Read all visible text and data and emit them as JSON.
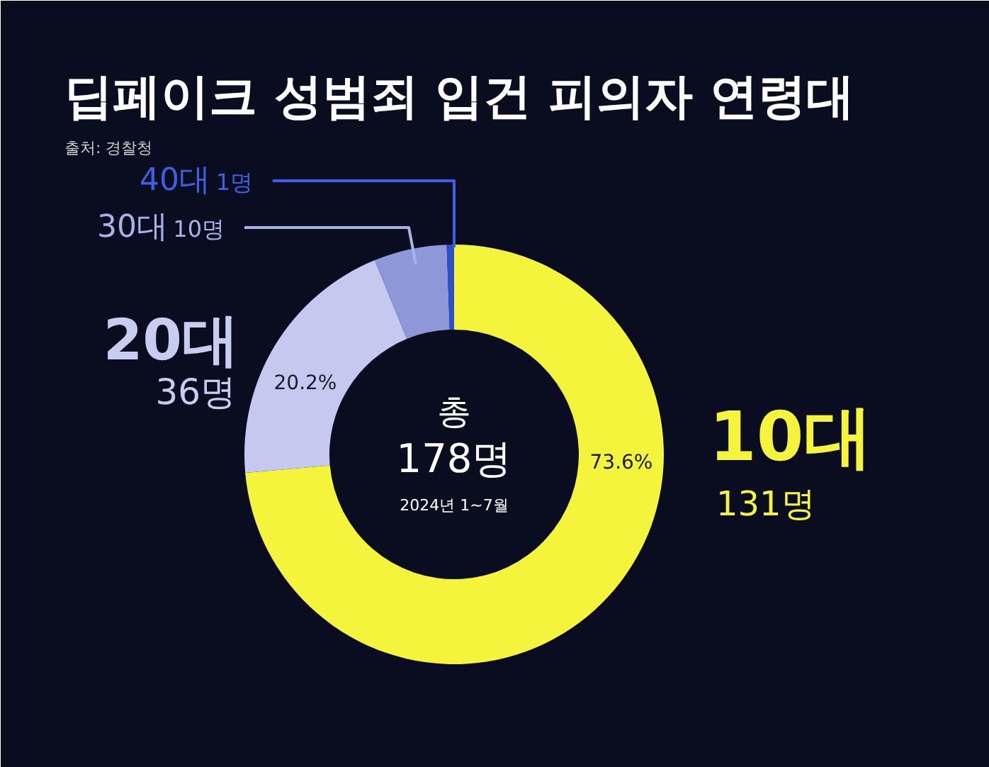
{
  "chart_data": {
    "type": "donut",
    "title": "딥페이크 성범죄 입건 피의자 연령대",
    "categories": [
      "10대",
      "20대",
      "30대",
      "40대"
    ],
    "values": [
      131,
      36,
      10,
      1
    ],
    "colors": [
      "#f4f43c",
      "#c5c9ef",
      "#8e98d8",
      "#2c4fd2"
    ],
    "value_labels": [
      "131명",
      "36명",
      "10명",
      "1명"
    ],
    "annotations": [
      "출처: 경찰청",
      "총",
      "178명",
      "2024년 1~7월",
      {
        "text": "73.6%",
        "x": "10대"
      },
      {
        "text": "20.2%",
        "x": "20대"
      }
    ]
  }
}
